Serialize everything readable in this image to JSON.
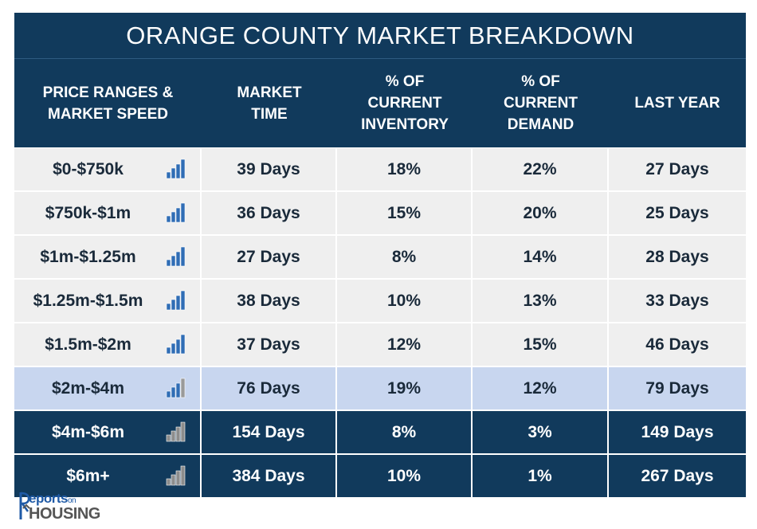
{
  "title": "ORANGE COUNTY MARKET BREAKDOWN",
  "headers": [
    "PRICE RANGES &\nMARKET SPEED",
    "MARKET\nTIME",
    "% OF\nCURRENT\nINVENTORY",
    "% OF\nCURRENT\nDEMAND",
    "LAST YEAR"
  ],
  "rows": [
    {
      "range": "$0-$750k",
      "market_time": "39 Days",
      "inventory": "18%",
      "demand": "22%",
      "last_year": "27 Days",
      "speed_icon": "signal-bars-blue-icon",
      "style": "light"
    },
    {
      "range": "$750k-$1m",
      "market_time": "36 Days",
      "inventory": "15%",
      "demand": "20%",
      "last_year": "25 Days",
      "speed_icon": "signal-bars-blue-icon",
      "style": "light"
    },
    {
      "range": "$1m-$1.25m",
      "market_time": "27 Days",
      "inventory": "8%",
      "demand": "14%",
      "last_year": "28 Days",
      "speed_icon": "signal-bars-blue-icon",
      "style": "light"
    },
    {
      "range": "$1.25m-$1.5m",
      "market_time": "38 Days",
      "inventory": "10%",
      "demand": "13%",
      "last_year": "33 Days",
      "speed_icon": "signal-bars-blue-icon",
      "style": "light"
    },
    {
      "range": "$1.5m-$2m",
      "market_time": "37 Days",
      "inventory": "12%",
      "demand": "15%",
      "last_year": "46 Days",
      "speed_icon": "signal-bars-blue-icon",
      "style": "light"
    },
    {
      "range": "$2m-$4m",
      "market_time": "76 Days",
      "inventory": "19%",
      "demand": "12%",
      "last_year": "79 Days",
      "speed_icon": "signal-bars-partial-icon",
      "style": "highlight"
    },
    {
      "range": "$4m-$6m",
      "market_time": "154 Days",
      "inventory": "8%",
      "demand": "3%",
      "last_year": "149 Days",
      "speed_icon": "signal-bars-gray-icon",
      "style": "dark"
    },
    {
      "range": "$6m+",
      "market_time": "384 Days",
      "inventory": "10%",
      "demand": "1%",
      "last_year": "267 Days",
      "speed_icon": "signal-bars-gray-icon",
      "style": "dark"
    }
  ],
  "logo": {
    "top_text": "eports",
    "top_small": "on",
    "bottom_text": "HOUSING"
  },
  "colors": {
    "header_bg": "#113a5c",
    "row_light": "#efefef",
    "row_highlight": "#c8d6ef",
    "bar_blue": "#2f6db5",
    "bar_gray": "#8c8c8c"
  }
}
